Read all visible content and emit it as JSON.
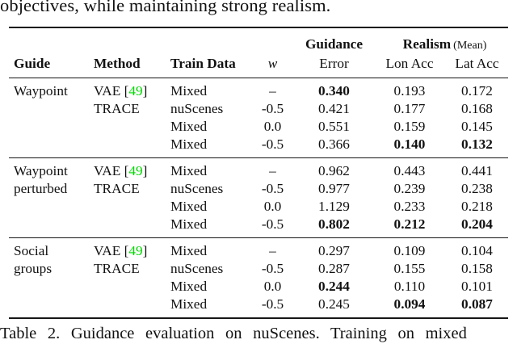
{
  "page": {
    "top_text": "objectives, while maintaining strong realism.",
    "caption": "Table 2. Guidance evaluation on nuScenes. Training on mixed"
  },
  "colors": {
    "citation_green": "#00d800",
    "rule_color": "#161616",
    "text_color": "#111111"
  },
  "table": {
    "header": {
      "guidance_group": "Guidance",
      "realism_group": "Realism",
      "realism_suffix": "(Mean)",
      "guide": "Guide",
      "method": "Method",
      "train_data": "Train Data",
      "w": "w",
      "error": "Error",
      "lon_acc": "Lon Acc",
      "lat_acc": "Lat Acc"
    },
    "groups": [
      {
        "guide": "Waypoint",
        "rows": [
          {
            "guide": "Waypoint",
            "method": "VAE",
            "cite": "49",
            "train": "Mixed",
            "w": "–",
            "error": {
              "v": "0.340",
              "b": true
            },
            "lon": {
              "v": "0.193",
              "b": false
            },
            "lat": {
              "v": "0.172",
              "b": false
            }
          },
          {
            "guide": "",
            "method": "TRACE",
            "cite": null,
            "train": "nuScenes",
            "w": "-0.5",
            "error": {
              "v": "0.421",
              "b": false
            },
            "lon": {
              "v": "0.177",
              "b": false
            },
            "lat": {
              "v": "0.168",
              "b": false
            }
          },
          {
            "guide": "",
            "method": "",
            "cite": null,
            "train": "Mixed",
            "w": "0.0",
            "error": {
              "v": "0.551",
              "b": false
            },
            "lon": {
              "v": "0.159",
              "b": false
            },
            "lat": {
              "v": "0.145",
              "b": false
            }
          },
          {
            "guide": "",
            "method": "",
            "cite": null,
            "train": "Mixed",
            "w": "-0.5",
            "error": {
              "v": "0.366",
              "b": false
            },
            "lon": {
              "v": "0.140",
              "b": true
            },
            "lat": {
              "v": "0.132",
              "b": true
            }
          }
        ]
      },
      {
        "guide": "Waypoint perturbed",
        "rows": [
          {
            "guide": "Waypoint",
            "method": "VAE",
            "cite": "49",
            "train": "Mixed",
            "w": "–",
            "error": {
              "v": "0.962",
              "b": false
            },
            "lon": {
              "v": "0.443",
              "b": false
            },
            "lat": {
              "v": "0.441",
              "b": false
            }
          },
          {
            "guide": "perturbed",
            "method": "TRACE",
            "cite": null,
            "train": "nuScenes",
            "w": "-0.5",
            "error": {
              "v": "0.977",
              "b": false
            },
            "lon": {
              "v": "0.239",
              "b": false
            },
            "lat": {
              "v": "0.238",
              "b": false
            }
          },
          {
            "guide": "",
            "method": "",
            "cite": null,
            "train": "Mixed",
            "w": "0.0",
            "error": {
              "v": "1.129",
              "b": false
            },
            "lon": {
              "v": "0.233",
              "b": false
            },
            "lat": {
              "v": "0.218",
              "b": false
            }
          },
          {
            "guide": "",
            "method": "",
            "cite": null,
            "train": "Mixed",
            "w": "-0.5",
            "error": {
              "v": "0.802",
              "b": true
            },
            "lon": {
              "v": "0.212",
              "b": true
            },
            "lat": {
              "v": "0.204",
              "b": true
            }
          }
        ]
      },
      {
        "guide": "Social groups",
        "rows": [
          {
            "guide": "Social",
            "method": "VAE",
            "cite": "49",
            "train": "Mixed",
            "w": "–",
            "error": {
              "v": "0.297",
              "b": false
            },
            "lon": {
              "v": "0.109",
              "b": false
            },
            "lat": {
              "v": "0.104",
              "b": false
            }
          },
          {
            "guide": "groups",
            "method": "TRACE",
            "cite": null,
            "train": "nuScenes",
            "w": "-0.5",
            "error": {
              "v": "0.287",
              "b": false
            },
            "lon": {
              "v": "0.155",
              "b": false
            },
            "lat": {
              "v": "0.158",
              "b": false
            }
          },
          {
            "guide": "",
            "method": "",
            "cite": null,
            "train": "Mixed",
            "w": "0.0",
            "error": {
              "v": "0.244",
              "b": true
            },
            "lon": {
              "v": "0.110",
              "b": false
            },
            "lat": {
              "v": "0.101",
              "b": false
            }
          },
          {
            "guide": "",
            "method": "",
            "cite": null,
            "train": "Mixed",
            "w": "-0.5",
            "error": {
              "v": "0.245",
              "b": false
            },
            "lon": {
              "v": "0.094",
              "b": true
            },
            "lat": {
              "v": "0.087",
              "b": true
            }
          }
        ]
      }
    ]
  }
}
